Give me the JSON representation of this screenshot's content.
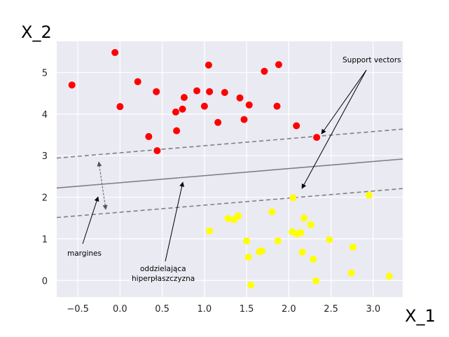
{
  "chart_data": {
    "type": "scatter",
    "xlabel": "X_1",
    "ylabel": "X_2",
    "xlim": [
      -0.75,
      3.35
    ],
    "ylim": [
      -0.4,
      5.75
    ],
    "xticks": [
      "−0.5",
      "0.0",
      "0.5",
      "1.0",
      "1.5",
      "2.0",
      "2.5",
      "3.0"
    ],
    "xtick_values": [
      -0.5,
      0.0,
      0.5,
      1.0,
      1.5,
      2.0,
      2.5,
      3.0
    ],
    "yticks": [
      "0",
      "1",
      "2",
      "3",
      "4",
      "5"
    ],
    "ytick_values": [
      0,
      1,
      2,
      3,
      4,
      5
    ],
    "grid": true,
    "background": "#eaeaf2",
    "series": [
      {
        "color": "#ff0000",
        "points": [
          [
            -0.57,
            4.7
          ],
          [
            -0.06,
            5.48
          ],
          [
            0.0,
            4.18
          ],
          [
            0.21,
            4.78
          ],
          [
            0.34,
            3.46
          ],
          [
            0.43,
            4.54
          ],
          [
            0.44,
            3.12
          ],
          [
            0.66,
            4.05
          ],
          [
            0.67,
            3.6
          ],
          [
            0.74,
            4.12
          ],
          [
            0.76,
            4.4
          ],
          [
            0.91,
            4.56
          ],
          [
            1.0,
            4.19
          ],
          [
            1.05,
            5.18
          ],
          [
            1.06,
            4.54
          ],
          [
            1.16,
            3.8
          ],
          [
            1.24,
            4.52
          ],
          [
            1.42,
            4.39
          ],
          [
            1.47,
            3.87
          ],
          [
            1.53,
            4.22
          ],
          [
            1.71,
            5.03
          ],
          [
            1.86,
            4.19
          ],
          [
            1.88,
            5.19
          ],
          [
            2.09,
            3.72
          ],
          [
            2.33,
            3.44
          ]
        ]
      },
      {
        "color": "#ffff00",
        "points": [
          [
            1.06,
            1.19
          ],
          [
            1.28,
            1.49
          ],
          [
            1.35,
            1.46
          ],
          [
            1.4,
            1.55
          ],
          [
            1.5,
            0.95
          ],
          [
            1.52,
            0.56
          ],
          [
            1.55,
            -0.11
          ],
          [
            1.65,
            0.69
          ],
          [
            1.68,
            0.71
          ],
          [
            1.8,
            1.65
          ],
          [
            1.87,
            0.95
          ],
          [
            2.04,
            1.17
          ],
          [
            2.05,
            1.99
          ],
          [
            2.1,
            1.12
          ],
          [
            2.14,
            1.15
          ],
          [
            2.16,
            0.68
          ],
          [
            2.18,
            1.5
          ],
          [
            2.26,
            1.34
          ],
          [
            2.29,
            0.51
          ],
          [
            2.32,
            -0.01
          ],
          [
            2.48,
            0.98
          ],
          [
            2.74,
            0.18
          ],
          [
            2.76,
            0.8
          ],
          [
            2.95,
            2.05
          ],
          [
            3.19,
            0.1
          ]
        ]
      }
    ],
    "lines": [
      {
        "style": "solid",
        "color": "#808080",
        "slope": 0.17,
        "intercept": 2.35
      },
      {
        "style": "dashed",
        "color": "#808080",
        "slope": 0.17,
        "intercept": 3.07
      },
      {
        "style": "dashed",
        "color": "#808080",
        "slope": 0.17,
        "intercept": 1.64
      }
    ],
    "annotations": {
      "support_vectors": "Support vectors",
      "margins": "margines",
      "hyperplane_line1": "oddzielająca",
      "hyperplane_line2": "hiperpłaszczyzna"
    }
  }
}
